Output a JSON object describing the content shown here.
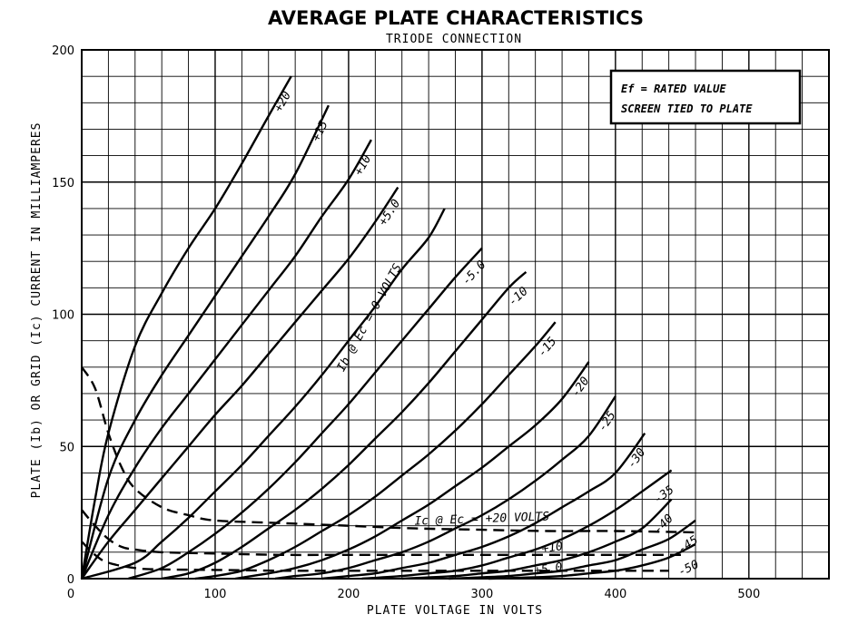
{
  "chart_data": {
    "type": "line",
    "title": "AVERAGE PLATE CHARACTERISTICS",
    "subtitle": "TRIODE CONNECTION",
    "xlabel": "PLATE VOLTAGE IN VOLTS",
    "ylabel": "PLATE (Ib) OR GRID (Ic) CURRENT IN MILLIAMPERES",
    "xlim": [
      0,
      560
    ],
    "ylim": [
      0,
      200
    ],
    "x_ticks": [
      {
        "value": 0,
        "label": "0"
      },
      {
        "value": 100,
        "label": "100"
      },
      {
        "value": 200,
        "label": "200"
      },
      {
        "value": 300,
        "label": "300"
      },
      {
        "value": 400,
        "label": "400"
      },
      {
        "value": 500,
        "label": "500"
      }
    ],
    "y_ticks": [
      {
        "value": 0,
        "label": "0"
      },
      {
        "value": 50,
        "label": "50"
      },
      {
        "value": 100,
        "label": "100"
      },
      {
        "value": 150,
        "label": "150"
      },
      {
        "value": 200,
        "label": "200"
      }
    ],
    "grid": true,
    "legend": {
      "position": "top-right",
      "lines": [
        "Ef = RATED VALUE",
        "SCREEN TIED TO PLATE"
      ]
    },
    "plate_series": [
      {
        "label": "+20",
        "points": [
          [
            0,
            0
          ],
          [
            10,
            30
          ],
          [
            20,
            55
          ],
          [
            40,
            88
          ],
          [
            60,
            108
          ],
          [
            80,
            125
          ],
          [
            100,
            140
          ],
          [
            120,
            157
          ],
          [
            140,
            175
          ],
          [
            157,
            190
          ]
        ]
      },
      {
        "label": "+15",
        "points": [
          [
            0,
            0
          ],
          [
            20,
            38
          ],
          [
            40,
            60
          ],
          [
            60,
            77
          ],
          [
            80,
            92
          ],
          [
            100,
            107
          ],
          [
            120,
            122
          ],
          [
            140,
            137
          ],
          [
            160,
            153
          ],
          [
            185,
            179
          ]
        ]
      },
      {
        "label": "+10",
        "points": [
          [
            0,
            0
          ],
          [
            20,
            24
          ],
          [
            40,
            42
          ],
          [
            60,
            57
          ],
          [
            80,
            70
          ],
          [
            100,
            83
          ],
          [
            120,
            96
          ],
          [
            140,
            109
          ],
          [
            160,
            122
          ],
          [
            180,
            137
          ],
          [
            200,
            151
          ],
          [
            217,
            166
          ]
        ]
      },
      {
        "label": "+5.0",
        "points": [
          [
            0,
            0
          ],
          [
            20,
            14
          ],
          [
            40,
            26
          ],
          [
            60,
            38
          ],
          [
            80,
            50
          ],
          [
            100,
            62
          ],
          [
            120,
            73
          ],
          [
            140,
            85
          ],
          [
            160,
            97
          ],
          [
            180,
            109
          ],
          [
            200,
            121
          ],
          [
            220,
            135
          ],
          [
            237,
            148
          ]
        ]
      },
      {
        "label": "Ib @ Ec = 0 VOLTS",
        "points": [
          [
            0,
            0
          ],
          [
            40,
            6
          ],
          [
            60,
            14
          ],
          [
            80,
            23
          ],
          [
            100,
            33
          ],
          [
            120,
            43
          ],
          [
            140,
            54
          ],
          [
            160,
            65
          ],
          [
            180,
            77
          ],
          [
            200,
            90
          ],
          [
            220,
            103
          ],
          [
            240,
            117
          ],
          [
            260,
            129
          ],
          [
            272,
            140
          ]
        ]
      },
      {
        "label": "-5.0",
        "points": [
          [
            35,
            0
          ],
          [
            60,
            4
          ],
          [
            80,
            10
          ],
          [
            100,
            17
          ],
          [
            120,
            25
          ],
          [
            140,
            34
          ],
          [
            160,
            44
          ],
          [
            180,
            55
          ],
          [
            200,
            66
          ],
          [
            220,
            78
          ],
          [
            240,
            90
          ],
          [
            260,
            102
          ],
          [
            280,
            114
          ],
          [
            300,
            125
          ]
        ]
      },
      {
        "label": "-10",
        "points": [
          [
            60,
            0
          ],
          [
            80,
            2
          ],
          [
            100,
            6
          ],
          [
            120,
            12
          ],
          [
            140,
            19
          ],
          [
            160,
            26
          ],
          [
            180,
            34
          ],
          [
            200,
            43
          ],
          [
            220,
            53
          ],
          [
            240,
            63
          ],
          [
            260,
            74
          ],
          [
            280,
            86
          ],
          [
            300,
            98
          ],
          [
            320,
            110
          ],
          [
            333,
            116
          ]
        ]
      },
      {
        "label": "-15",
        "points": [
          [
            85,
            0
          ],
          [
            100,
            1
          ],
          [
            120,
            3
          ],
          [
            140,
            7
          ],
          [
            160,
            12
          ],
          [
            180,
            18
          ],
          [
            200,
            24
          ],
          [
            220,
            31
          ],
          [
            240,
            39
          ],
          [
            260,
            47
          ],
          [
            280,
            56
          ],
          [
            300,
            66
          ],
          [
            320,
            77
          ],
          [
            340,
            88
          ],
          [
            355,
            97
          ]
        ]
      },
      {
        "label": "-20",
        "points": [
          [
            115,
            0
          ],
          [
            140,
            2
          ],
          [
            160,
            4
          ],
          [
            180,
            7
          ],
          [
            200,
            11
          ],
          [
            220,
            16
          ],
          [
            240,
            22
          ],
          [
            260,
            28
          ],
          [
            280,
            35
          ],
          [
            300,
            42
          ],
          [
            320,
            50
          ],
          [
            340,
            58
          ],
          [
            360,
            68
          ],
          [
            380,
            82
          ]
        ]
      },
      {
        "label": "-25",
        "points": [
          [
            145,
            0
          ],
          [
            160,
            1
          ],
          [
            180,
            2
          ],
          [
            200,
            4
          ],
          [
            220,
            7
          ],
          [
            240,
            10
          ],
          [
            260,
            14
          ],
          [
            280,
            19
          ],
          [
            300,
            24
          ],
          [
            320,
            30
          ],
          [
            340,
            37
          ],
          [
            360,
            45
          ],
          [
            380,
            54
          ],
          [
            400,
            69
          ]
        ]
      },
      {
        "label": "-30",
        "points": [
          [
            180,
            0
          ],
          [
            200,
            1
          ],
          [
            220,
            2
          ],
          [
            240,
            4
          ],
          [
            260,
            6
          ],
          [
            280,
            9
          ],
          [
            300,
            12
          ],
          [
            320,
            16
          ],
          [
            340,
            21
          ],
          [
            360,
            27
          ],
          [
            380,
            33
          ],
          [
            400,
            40
          ],
          [
            422,
            55
          ]
        ]
      },
      {
        "label": "-35",
        "points": [
          [
            210,
            0
          ],
          [
            240,
            1
          ],
          [
            260,
            2
          ],
          [
            280,
            3
          ],
          [
            300,
            5
          ],
          [
            320,
            8
          ],
          [
            340,
            11
          ],
          [
            360,
            15
          ],
          [
            380,
            20
          ],
          [
            400,
            26
          ],
          [
            420,
            33
          ],
          [
            442,
            41
          ]
        ]
      },
      {
        "label": "-40",
        "points": [
          [
            240,
            0
          ],
          [
            280,
            1
          ],
          [
            300,
            2
          ],
          [
            320,
            3
          ],
          [
            340,
            5
          ],
          [
            360,
            7
          ],
          [
            380,
            10
          ],
          [
            400,
            14
          ],
          [
            420,
            19
          ],
          [
            442,
            30
          ]
        ]
      },
      {
        "label": "-45",
        "points": [
          [
            275,
            0
          ],
          [
            300,
            0.5
          ],
          [
            320,
            1
          ],
          [
            340,
            2
          ],
          [
            360,
            3
          ],
          [
            380,
            5
          ],
          [
            400,
            7
          ],
          [
            420,
            11
          ],
          [
            440,
            15
          ],
          [
            460,
            22
          ]
        ]
      },
      {
        "label": "-50",
        "points": [
          [
            305,
            0
          ],
          [
            340,
            0.5
          ],
          [
            360,
            1
          ],
          [
            380,
            2
          ],
          [
            400,
            3
          ],
          [
            420,
            5
          ],
          [
            440,
            8
          ],
          [
            460,
            13
          ]
        ]
      }
    ],
    "grid_series": [
      {
        "label": "Ic @ Ec = +20 VOLTS",
        "points": [
          [
            0,
            80
          ],
          [
            10,
            72
          ],
          [
            20,
            55
          ],
          [
            30,
            42
          ],
          [
            40,
            34
          ],
          [
            60,
            27
          ],
          [
            80,
            24
          ],
          [
            100,
            22
          ],
          [
            150,
            21
          ],
          [
            200,
            20
          ],
          [
            250,
            19
          ],
          [
            300,
            18.5
          ],
          [
            350,
            18
          ],
          [
            400,
            18
          ],
          [
            460,
            17.5
          ]
        ]
      },
      {
        "label": "+10",
        "points": [
          [
            0,
            26
          ],
          [
            10,
            20
          ],
          [
            20,
            15
          ],
          [
            30,
            12
          ],
          [
            40,
            11
          ],
          [
            60,
            10
          ],
          [
            100,
            9.5
          ],
          [
            150,
            9
          ],
          [
            200,
            9
          ],
          [
            300,
            9
          ],
          [
            400,
            9
          ],
          [
            450,
            9
          ]
        ]
      },
      {
        "label": "+5.0",
        "points": [
          [
            0,
            14
          ],
          [
            10,
            9
          ],
          [
            20,
            6
          ],
          [
            40,
            4
          ],
          [
            60,
            3.5
          ],
          [
            100,
            3.3
          ],
          [
            150,
            3
          ],
          [
            200,
            3
          ],
          [
            300,
            3
          ],
          [
            400,
            3
          ],
          [
            440,
            3
          ]
        ]
      }
    ]
  }
}
